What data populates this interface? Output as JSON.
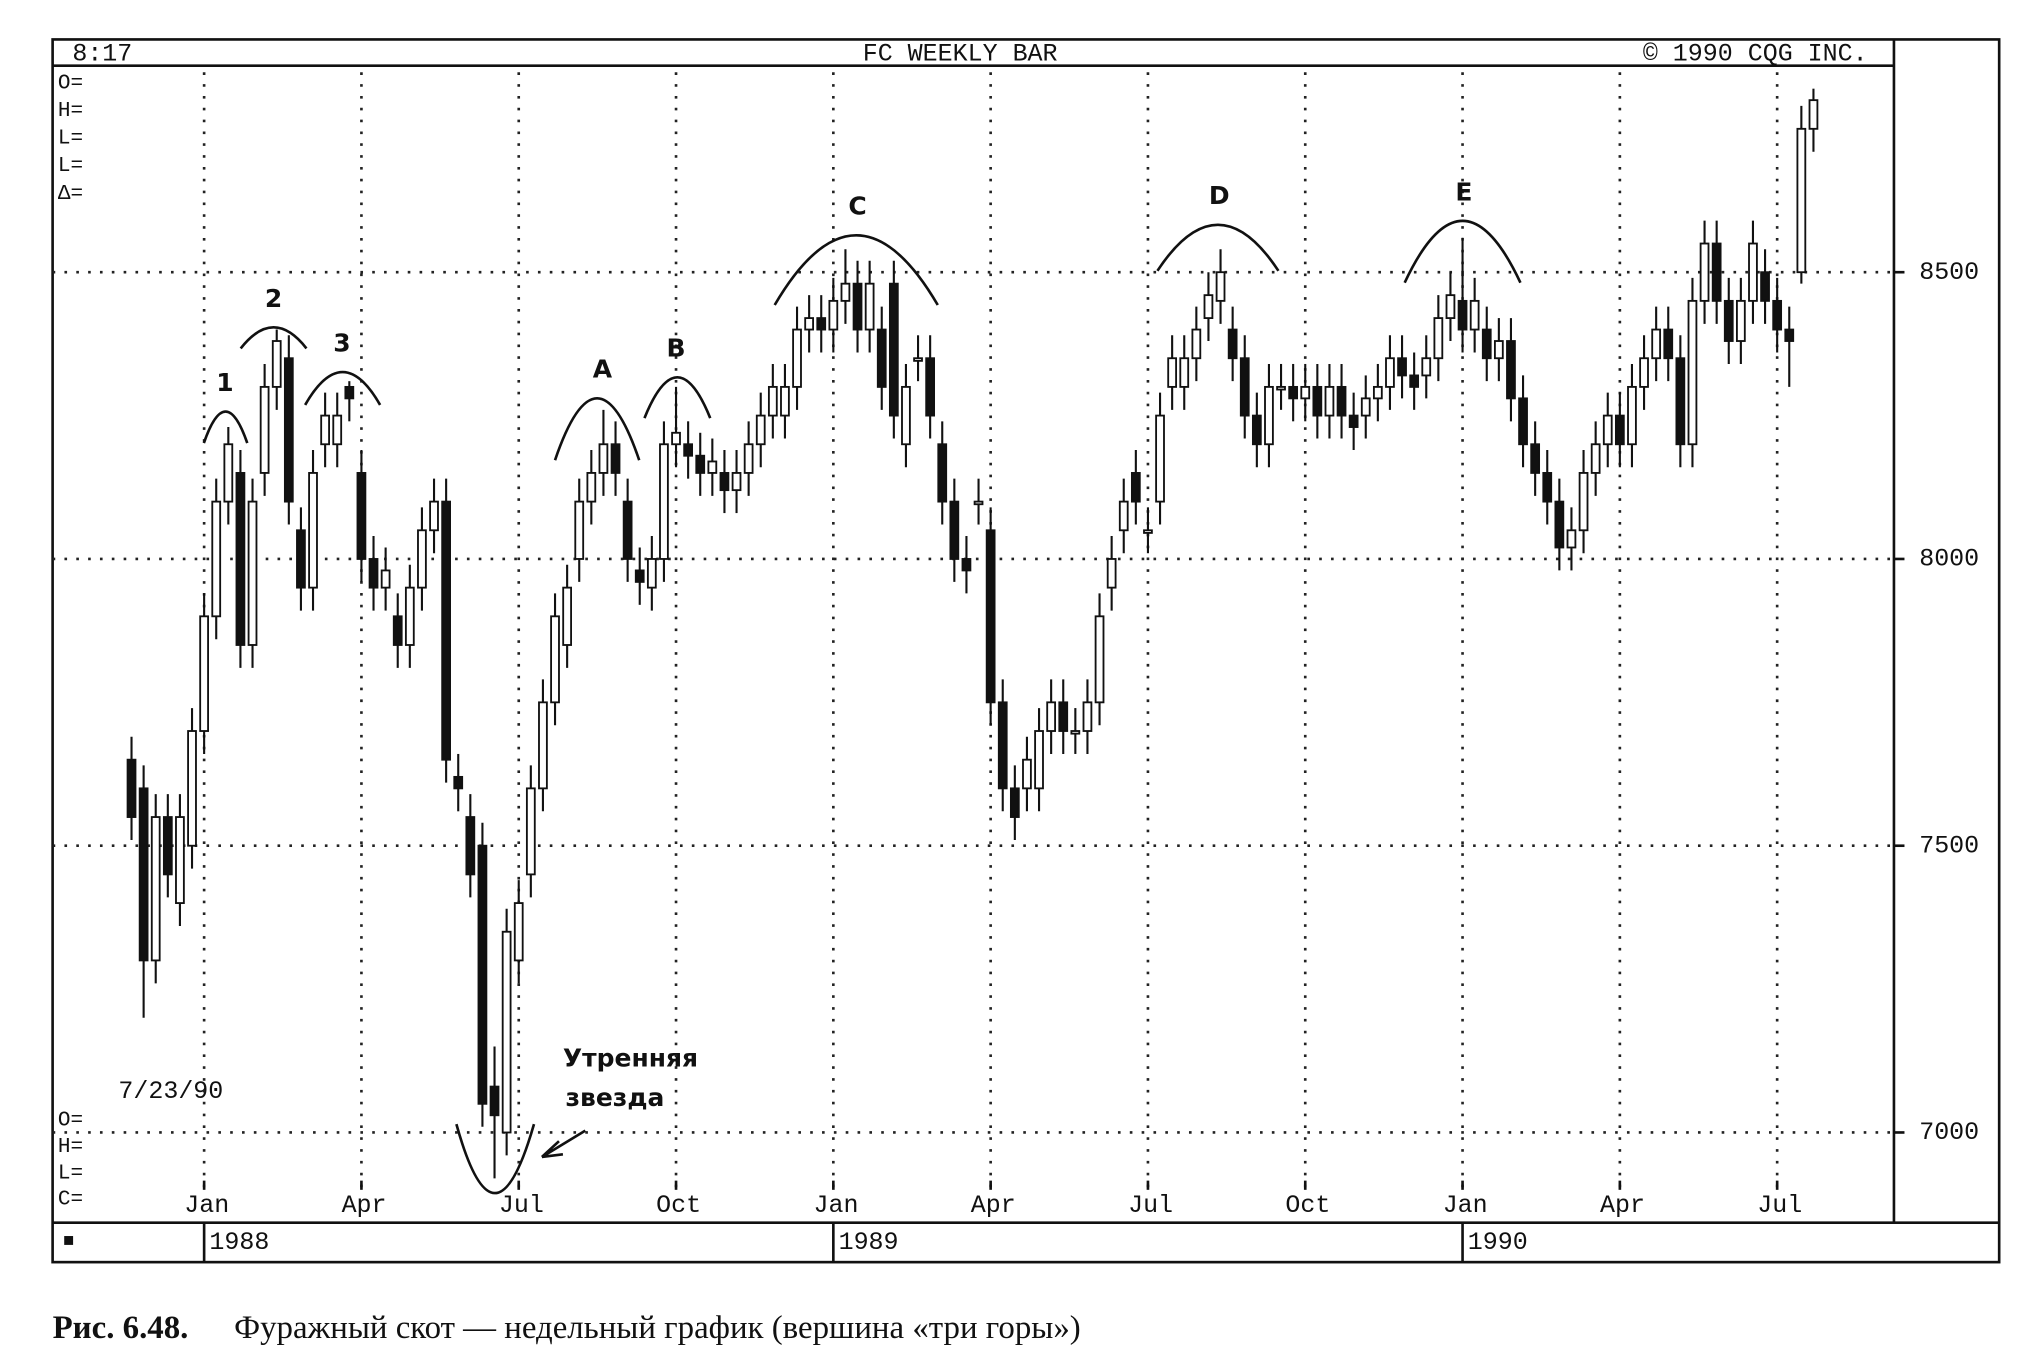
{
  "chart_data": {
    "type": "candlestick",
    "header": {
      "time": "8:17",
      "title": "FC WEEKLY BAR",
      "copyright": "© 1990 CQG INC."
    },
    "readout_top": [
      "O=",
      "H=",
      "L=",
      "L=",
      "Δ="
    ],
    "readout_bottom": [
      "O=",
      "H=",
      "L=",
      "C="
    ],
    "date": "7/23/90",
    "years": [
      "1988",
      "1989",
      "1990"
    ],
    "box_marker": "■",
    "peaks": [
      "1",
      "2",
      "3",
      "A",
      "B",
      "C",
      "D",
      "E"
    ],
    "morning_star": [
      "Утренняя",
      "звезда"
    ],
    "caption": {
      "label": "Рис. 6.48.",
      "text": "Фуражный скот — недельный график (вершина «три горы»)"
    },
    "ylim": [
      6900,
      8860
    ],
    "yticks": [
      7000,
      7500,
      8000,
      8500
    ],
    "grid": true,
    "categories": [
      null,
      null,
      null,
      null,
      null,
      null,
      "Jan",
      null,
      null,
      null,
      null,
      null,
      null,
      null,
      null,
      null,
      null,
      null,
      null,
      "Apr",
      null,
      null,
      null,
      null,
      null,
      null,
      null,
      null,
      null,
      null,
      null,
      null,
      "Jul",
      null,
      null,
      null,
      null,
      null,
      null,
      null,
      null,
      null,
      null,
      null,
      null,
      "Oct",
      null,
      null,
      null,
      null,
      null,
      null,
      null,
      null,
      null,
      null,
      null,
      null,
      "Jan",
      null,
      null,
      null,
      null,
      null,
      null,
      null,
      null,
      null,
      null,
      null,
      null,
      "Apr",
      null,
      null,
      null,
      null,
      null,
      null,
      null,
      null,
      null,
      null,
      null,
      null,
      "Jul",
      null,
      null,
      null,
      null,
      null,
      null,
      null,
      null,
      null,
      null,
      null,
      null,
      "Oct",
      null,
      null,
      null,
      null,
      null,
      null,
      null,
      null,
      null,
      null,
      null,
      null,
      "Jan",
      null,
      null,
      null,
      null,
      null,
      null,
      null,
      null,
      null,
      null,
      null,
      null,
      "Apr",
      null,
      null,
      null,
      null,
      null,
      null,
      null,
      null,
      null,
      null,
      null,
      null,
      "Jul",
      null,
      null,
      null
    ],
    "open": [
      7650,
      7600,
      7300,
      7550,
      7400,
      7500,
      7700,
      7900,
      8100,
      8150,
      7850,
      8150,
      8300,
      8350,
      8050,
      7950,
      8200,
      8200,
      8300,
      8150,
      8000,
      7950,
      7900,
      7850,
      7950,
      8050,
      8100,
      7620,
      7550,
      7500,
      7080,
      7000,
      7300,
      7450,
      7600,
      7750,
      7850,
      8000,
      8100,
      8150,
      8200,
      8100,
      7980,
      7950,
      8000,
      8200,
      8200,
      8180,
      8150,
      8150,
      8120,
      8150,
      8200,
      8250,
      8250,
      8300,
      8400,
      8420,
      8400,
      8450,
      8480,
      8400,
      8400,
      8480,
      8200,
      8350,
      8350,
      8200,
      8100,
      8000,
      8100,
      8050,
      7750,
      7600,
      7600,
      7600,
      7700,
      7750,
      7700,
      7700,
      7750,
      7950,
      8050,
      8150,
      8050,
      8100,
      8300,
      8300,
      8350,
      8420,
      8450,
      8400,
      8350,
      8250,
      8200,
      8300,
      8300,
      8280,
      8300,
      8250,
      8300,
      8250,
      8250,
      8280,
      8300,
      8350,
      8320,
      8320,
      8350,
      8420,
      8450,
      8400,
      8400,
      8350,
      8380,
      8280,
      8200,
      8150,
      8100,
      8020,
      8050,
      8150,
      8200,
      8250,
      8200,
      8300,
      8350,
      8400,
      8350,
      8200,
      8450,
      8550,
      8450,
      8380,
      8450,
      8500,
      8450,
      8400,
      8500,
      8750
    ],
    "high": [
      7690,
      7640,
      7590,
      7590,
      7590,
      7740,
      7940,
      8140,
      8230,
      8190,
      8140,
      8340,
      8400,
      8390,
      8090,
      8190,
      8290,
      8290,
      8310,
      8190,
      8040,
      8020,
      7940,
      7990,
      8090,
      8140,
      8140,
      7660,
      7590,
      7540,
      7150,
      7390,
      7440,
      7640,
      7790,
      7940,
      7990,
      8140,
      8190,
      8260,
      8240,
      8140,
      8020,
      8040,
      8240,
      8300,
      8240,
      8220,
      8210,
      8190,
      8190,
      8240,
      8290,
      8340,
      8340,
      8440,
      8460,
      8460,
      8490,
      8540,
      8520,
      8520,
      8440,
      8520,
      8340,
      8390,
      8390,
      8240,
      8140,
      8040,
      8140,
      8090,
      7790,
      7640,
      7690,
      7740,
      7790,
      7790,
      7740,
      7790,
      7940,
      8040,
      8140,
      8190,
      8090,
      8290,
      8390,
      8390,
      8440,
      8500,
      8540,
      8440,
      8390,
      8290,
      8340,
      8340,
      8340,
      8340,
      8340,
      8340,
      8340,
      8290,
      8320,
      8340,
      8390,
      8390,
      8360,
      8390,
      8460,
      8500,
      8560,
      8490,
      8440,
      8420,
      8420,
      8320,
      8240,
      8190,
      8140,
      8090,
      8190,
      8240,
      8290,
      8290,
      8340,
      8390,
      8440,
      8440,
      8390,
      8490,
      8590,
      8590,
      8490,
      8490,
      8590,
      8540,
      8490,
      8440,
      8790,
      8820
    ],
    "low": [
      7510,
      7200,
      7260,
      7410,
      7360,
      7460,
      7660,
      7860,
      8060,
      7810,
      7810,
      8110,
      8260,
      8060,
      7910,
      7910,
      8160,
      8160,
      8240,
      7960,
      7910,
      7910,
      7810,
      7810,
      7910,
      8010,
      7610,
      7560,
      7410,
      7010,
      6920,
      6960,
      7260,
      7410,
      7560,
      7710,
      7810,
      7960,
      8060,
      8110,
      8110,
      7960,
      7920,
      7910,
      7960,
      8160,
      8140,
      8110,
      8110,
      8080,
      8080,
      8110,
      8160,
      8210,
      8210,
      8260,
      8360,
      8360,
      8360,
      8410,
      8360,
      8360,
      8260,
      8210,
      8160,
      8310,
      8210,
      8060,
      7960,
      7940,
      8060,
      7710,
      7560,
      7510,
      7560,
      7560,
      7660,
      7660,
      7660,
      7660,
      7710,
      7910,
      8010,
      8060,
      8010,
      8060,
      8260,
      8260,
      8310,
      8380,
      8410,
      8310,
      8210,
      8160,
      8160,
      8260,
      8240,
      8240,
      8210,
      8210,
      8210,
      8190,
      8210,
      8240,
      8260,
      8280,
      8260,
      8280,
      8310,
      8380,
      8360,
      8360,
      8310,
      8310,
      8240,
      8160,
      8110,
      8060,
      7980,
      7980,
      8010,
      8110,
      8160,
      8160,
      8160,
      8260,
      8310,
      8310,
      8160,
      8160,
      8410,
      8410,
      8340,
      8340,
      8410,
      8410,
      8360,
      8300,
      8480,
      8710
    ],
    "close": [
      7550,
      7300,
      7550,
      7450,
      7550,
      7700,
      7900,
      8100,
      8200,
      7850,
      8100,
      8300,
      8380,
      8100,
      7950,
      8150,
      8250,
      8250,
      8280,
      8000,
      7950,
      7980,
      7850,
      7950,
      8050,
      8100,
      7650,
      7600,
      7450,
      7050,
      7030,
      7350,
      7400,
      7600,
      7750,
      7900,
      7950,
      8100,
      8150,
      8200,
      8150,
      8000,
      7960,
      8000,
      8200,
      8220,
      8180,
      8150,
      8170,
      8120,
      8150,
      8200,
      8250,
      8300,
      8300,
      8400,
      8420,
      8400,
      8450,
      8480,
      8400,
      8480,
      8300,
      8250,
      8300,
      8350,
      8250,
      8100,
      8000,
      7980,
      8100,
      7750,
      7600,
      7550,
      7650,
      7700,
      7750,
      7700,
      7700,
      7750,
      7900,
      8000,
      8100,
      8100,
      8050,
      8250,
      8350,
      8350,
      8400,
      8460,
      8500,
      8350,
      8250,
      8200,
      8300,
      8300,
      8280,
      8300,
      8250,
      8300,
      8250,
      8230,
      8280,
      8300,
      8350,
      8320,
      8300,
      8350,
      8420,
      8460,
      8400,
      8450,
      8350,
      8380,
      8280,
      8200,
      8150,
      8100,
      8020,
      8050,
      8150,
      8200,
      8250,
      8200,
      8300,
      8350,
      8400,
      8350,
      8200,
      8450,
      8550,
      8450,
      8380,
      8450,
      8550,
      8450,
      8400,
      8380,
      8750,
      8800
    ]
  }
}
